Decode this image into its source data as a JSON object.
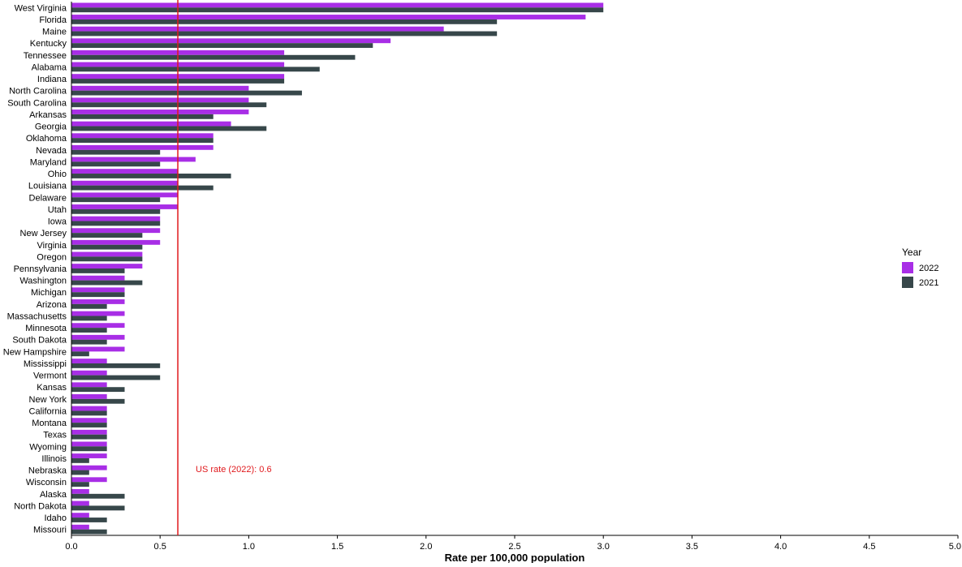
{
  "chart_data": {
    "type": "bar",
    "orientation": "horizontal",
    "categories": [
      "West Virginia",
      "Florida",
      "Maine",
      "Kentucky",
      "Tennessee",
      "Alabama",
      "Indiana",
      "North Carolina",
      "South Carolina",
      "Arkansas",
      "Georgia",
      "Oklahoma",
      "Nevada",
      "Maryland",
      "Ohio",
      "Louisiana",
      "Delaware",
      "Utah",
      "Iowa",
      "New Jersey",
      "Virginia",
      "Oregon",
      "Pennsylvania",
      "Washington",
      "Michigan",
      "Arizona",
      "Massachusetts",
      "Minnesota",
      "South Dakota",
      "New Hampshire",
      "Mississippi",
      "Vermont",
      "Kansas",
      "New York",
      "California",
      "Montana",
      "Texas",
      "Wyoming",
      "Illinois",
      "Nebraska",
      "Wisconsin",
      "Alaska",
      "North Dakota",
      "Idaho",
      "Missouri"
    ],
    "series": [
      {
        "name": "2022",
        "color": "#a82ee6",
        "values": [
          3.0,
          2.9,
          2.1,
          1.8,
          1.2,
          1.2,
          1.2,
          1.0,
          1.0,
          1.0,
          0.9,
          0.8,
          0.8,
          0.7,
          0.6,
          0.6,
          0.6,
          0.6,
          0.5,
          0.5,
          0.5,
          0.4,
          0.4,
          0.3,
          0.3,
          0.3,
          0.3,
          0.3,
          0.3,
          0.3,
          0.2,
          0.2,
          0.2,
          0.2,
          0.2,
          0.2,
          0.2,
          0.2,
          0.2,
          0.2,
          0.2,
          0.1,
          0.1,
          0.1,
          0.1
        ]
      },
      {
        "name": "2021",
        "color": "#37474a",
        "values": [
          3.0,
          2.4,
          2.4,
          1.7,
          1.6,
          1.4,
          1.2,
          1.3,
          1.1,
          0.8,
          1.1,
          0.8,
          0.5,
          0.5,
          0.9,
          0.8,
          0.5,
          0.5,
          0.5,
          0.4,
          0.4,
          0.4,
          0.3,
          0.4,
          0.3,
          0.2,
          0.2,
          0.2,
          0.2,
          0.1,
          0.5,
          0.5,
          0.3,
          0.3,
          0.2,
          0.2,
          0.2,
          0.2,
          0.1,
          0.1,
          0.1,
          0.3,
          0.3,
          0.2,
          0.2
        ]
      }
    ],
    "xlabel": "Rate per 100,000 population",
    "xlim": [
      0,
      5.0
    ],
    "xticks": [
      "0.0",
      "0.5",
      "1.0",
      "1.5",
      "2.0",
      "2.5",
      "3.0",
      "3.5",
      "4.0",
      "4.5",
      "5.0"
    ],
    "grid": false,
    "legend": {
      "title": "Year",
      "position": "right"
    },
    "reference_line": {
      "value": 0.6,
      "label": "US rate (2022): 0.6",
      "color": "#e0191d"
    }
  }
}
